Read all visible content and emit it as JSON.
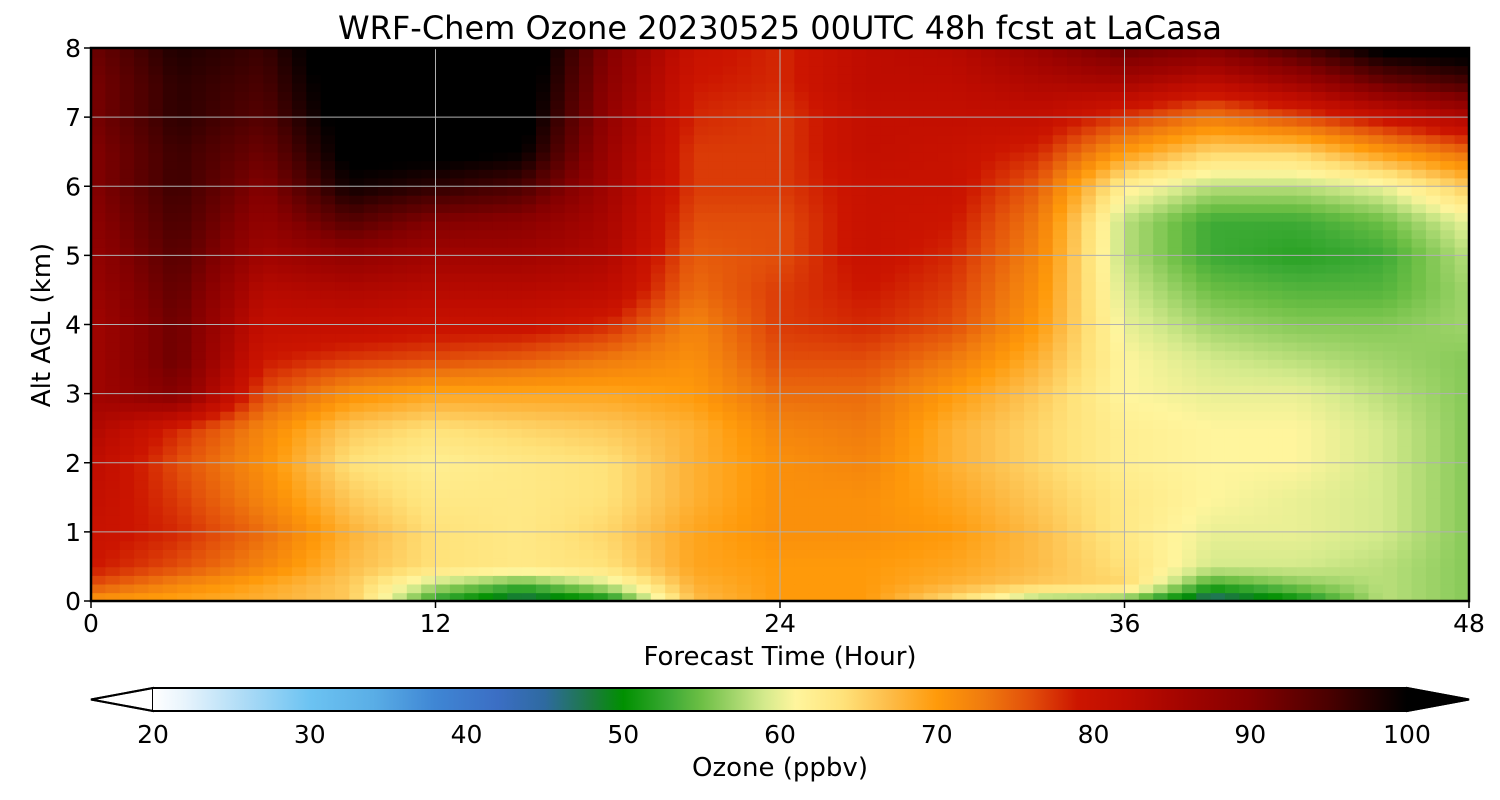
{
  "chart_data": {
    "type": "heatmap",
    "title": "WRF-Chem Ozone  20230525 00UTC 48h fcst at LaCasa",
    "xlabel": "Forecast Time (Hour)",
    "ylabel": "Alt AGL (km)",
    "xlim": [
      0,
      48
    ],
    "ylim": [
      0,
      8
    ],
    "xticks": [
      0,
      12,
      24,
      36,
      48
    ],
    "yticks": [
      0,
      1,
      2,
      3,
      4,
      5,
      6,
      7,
      8
    ],
    "grid": true,
    "x": [
      0,
      3,
      6,
      9,
      12,
      15,
      18,
      21,
      24,
      27,
      30,
      33,
      36,
      39,
      42,
      45,
      48
    ],
    "y": [
      0,
      0.25,
      0.5,
      1,
      1.5,
      2,
      2.5,
      3,
      3.5,
      4,
      4.5,
      5,
      5.5,
      6,
      6.5,
      7,
      7.5,
      8
    ],
    "z": [
      [
        70,
        69,
        68,
        66,
        52,
        46,
        50,
        67,
        70,
        70,
        64,
        56,
        55,
        45,
        50,
        58,
        56
      ],
      [
        76,
        72,
        69,
        66,
        58,
        54,
        59,
        68,
        70,
        70,
        68,
        66,
        65,
        53,
        56,
        58,
        56
      ],
      [
        79,
        76,
        72,
        67,
        64,
        63,
        64,
        69,
        70,
        70,
        69,
        67,
        64,
        59,
        59,
        58,
        56
      ],
      [
        80,
        78,
        74,
        68,
        64,
        63,
        65,
        69,
        71,
        71,
        70,
        67,
        63,
        60,
        60,
        59,
        56
      ],
      [
        81,
        77,
        72,
        66,
        63,
        63,
        64,
        68,
        71,
        71,
        69,
        66,
        63,
        61,
        60,
        59,
        56
      ],
      [
        82,
        76,
        71,
        64,
        62,
        63,
        64,
        68,
        71,
        72,
        68,
        65,
        62,
        61,
        61,
        59,
        56
      ],
      [
        84,
        78,
        72,
        66,
        64,
        65,
        66,
        68,
        72,
        73,
        68,
        65,
        62,
        61,
        61,
        59,
        56
      ],
      [
        86,
        90,
        76,
        71,
        69,
        69,
        69,
        70,
        74,
        74,
        70,
        66,
        61,
        60,
        60,
        58,
        56
      ],
      [
        86,
        92,
        79,
        77,
        76,
        75,
        73,
        71,
        76,
        76,
        73,
        68,
        61,
        59,
        58,
        57,
        56
      ],
      [
        86,
        92,
        81,
        81,
        80,
        80,
        78,
        72,
        77,
        78,
        76,
        70,
        60,
        57,
        56,
        56,
        57
      ],
      [
        87,
        93,
        83,
        84,
        83,
        83,
        82,
        74,
        77,
        79,
        77,
        71,
        59,
        55,
        54,
        54,
        57
      ],
      [
        88,
        94,
        86,
        88,
        86,
        86,
        84,
        75,
        76,
        80,
        78,
        72,
        58,
        53,
        52,
        53,
        58
      ],
      [
        89,
        95,
        88,
        94,
        90,
        89,
        85,
        76,
        76,
        80,
        79,
        73,
        58,
        53,
        53,
        55,
        60
      ],
      [
        90,
        96,
        90,
        99,
        97,
        95,
        86,
        77,
        77,
        80,
        80,
        75,
        62,
        58,
        58,
        60,
        66
      ],
      [
        90,
        96,
        92,
        101,
        101,
        100,
        87,
        77,
        77,
        81,
        80,
        78,
        70,
        65,
        65,
        70,
        74
      ],
      [
        91,
        97,
        94,
        102,
        102,
        102,
        88,
        78,
        77,
        81,
        81,
        81,
        77,
        73,
        76,
        80,
        84
      ],
      [
        91,
        97,
        95,
        103,
        103,
        103,
        89,
        79,
        78,
        82,
        82,
        84,
        85,
        82,
        86,
        92,
        95
      ],
      [
        92,
        98,
        96,
        104,
        104,
        104,
        90,
        80,
        78,
        82,
        83,
        87,
        92,
        90,
        95,
        101,
        102
      ]
    ]
  },
  "colorbar": {
    "label": "Ozone  (ppbv)",
    "min": 20,
    "max": 100,
    "ticks": [
      "20",
      "30",
      "40",
      "50",
      "60",
      "70",
      "80",
      "90",
      "100"
    ],
    "extend": "both",
    "colormap": [
      [
        20,
        "#ffffff"
      ],
      [
        22,
        "#e8f4fc"
      ],
      [
        26,
        "#aadaf6"
      ],
      [
        30,
        "#6cc3f2"
      ],
      [
        34,
        "#5aaee6"
      ],
      [
        38,
        "#3f86d4"
      ],
      [
        42,
        "#3b6ec4"
      ],
      [
        45,
        "#2e6aa0"
      ],
      [
        48,
        "#1b7a3e"
      ],
      [
        50,
        "#009000"
      ],
      [
        53,
        "#3daa35"
      ],
      [
        55,
        "#6dbf45"
      ],
      [
        57,
        "#a0d46a"
      ],
      [
        59,
        "#d4ea8c"
      ],
      [
        61,
        "#fff59d"
      ],
      [
        64,
        "#ffe27a"
      ],
      [
        67,
        "#fdbc48"
      ],
      [
        70,
        "#ff9a0a"
      ],
      [
        73,
        "#f07b0e"
      ],
      [
        76,
        "#e24e0a"
      ],
      [
        79,
        "#cc1500"
      ],
      [
        82,
        "#be0c00"
      ],
      [
        86,
        "#a10400"
      ],
      [
        90,
        "#840000"
      ],
      [
        95,
        "#4a0000"
      ],
      [
        100,
        "#000000"
      ]
    ]
  }
}
